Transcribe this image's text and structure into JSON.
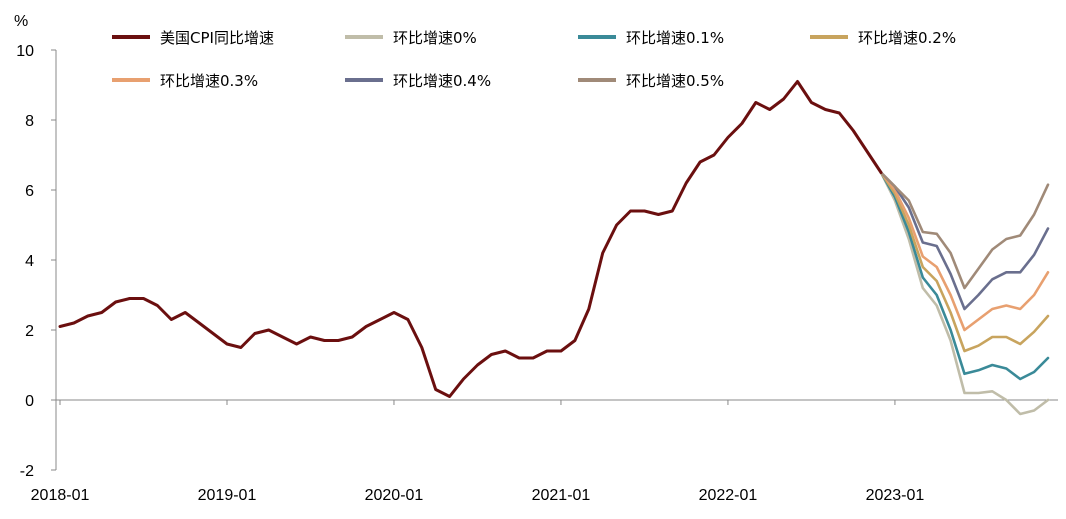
{
  "chart_data": {
    "type": "line",
    "ylabel": "%",
    "ylim": [
      -2,
      10
    ],
    "yticks": [
      -2,
      0,
      2,
      4,
      6,
      8,
      10
    ],
    "x_start": "2018-01",
    "x_end": "2023-12",
    "xticks": [
      "2018-01",
      "2019-01",
      "2020-01",
      "2021-01",
      "2022-01",
      "2023-01"
    ],
    "grid": false,
    "legend_position": "top",
    "series": [
      {
        "name": "美国CPI同比增速",
        "color": "#6b0f0f",
        "x_start": "2018-01",
        "values": [
          2.1,
          2.2,
          2.4,
          2.5,
          2.8,
          2.9,
          2.9,
          2.7,
          2.3,
          2.5,
          2.2,
          1.9,
          1.6,
          1.5,
          1.9,
          2.0,
          1.8,
          1.6,
          1.8,
          1.7,
          1.7,
          1.8,
          2.1,
          2.3,
          2.5,
          2.3,
          1.5,
          0.3,
          0.1,
          0.6,
          1.0,
          1.3,
          1.4,
          1.2,
          1.2,
          1.4,
          1.4,
          1.7,
          2.6,
          4.2,
          5.0,
          5.4,
          5.4,
          5.3,
          5.4,
          6.2,
          6.8,
          7.0,
          7.5,
          7.9,
          8.5,
          8.3,
          8.6,
          9.1,
          8.5,
          8.3,
          8.2,
          7.7,
          7.1,
          6.5
        ]
      },
      {
        "name": "环比增速0%",
        "color": "#c0bda9",
        "x_start": "2022-12",
        "values": [
          6.5,
          5.7,
          4.6,
          3.2,
          2.7,
          1.7,
          0.2,
          0.2,
          0.25,
          0.0,
          -0.4,
          -0.3,
          0.0
        ]
      },
      {
        "name": "环比增速0.1%",
        "color": "#3a8a98",
        "x_start": "2022-12",
        "values": [
          6.5,
          5.8,
          4.8,
          3.5,
          3.0,
          2.0,
          0.75,
          0.85,
          1.0,
          0.9,
          0.6,
          0.8,
          1.2
        ]
      },
      {
        "name": "环比增速0.2%",
        "color": "#c8a45e",
        "x_start": "2022-12",
        "values": [
          6.5,
          5.9,
          5.0,
          3.8,
          3.4,
          2.5,
          1.4,
          1.55,
          1.8,
          1.8,
          1.6,
          1.95,
          2.4
        ]
      },
      {
        "name": "环比增速0.3%",
        "color": "#e8a070",
        "x_start": "2022-12",
        "values": [
          6.5,
          6.0,
          5.2,
          4.1,
          3.8,
          3.0,
          2.0,
          2.3,
          2.6,
          2.7,
          2.6,
          3.0,
          3.65
        ]
      },
      {
        "name": "环比增速0.4%",
        "color": "#6a6f8e",
        "x_start": "2022-12",
        "values": [
          6.5,
          6.1,
          5.5,
          4.5,
          4.4,
          3.6,
          2.6,
          3.0,
          3.45,
          3.65,
          3.65,
          4.15,
          4.9
        ]
      },
      {
        "name": "环比增速0.5%",
        "color": "#a08a78",
        "x_start": "2022-12",
        "values": [
          6.5,
          6.1,
          5.7,
          4.8,
          4.75,
          4.2,
          3.2,
          3.75,
          4.3,
          4.6,
          4.7,
          5.3,
          6.15
        ]
      }
    ]
  }
}
